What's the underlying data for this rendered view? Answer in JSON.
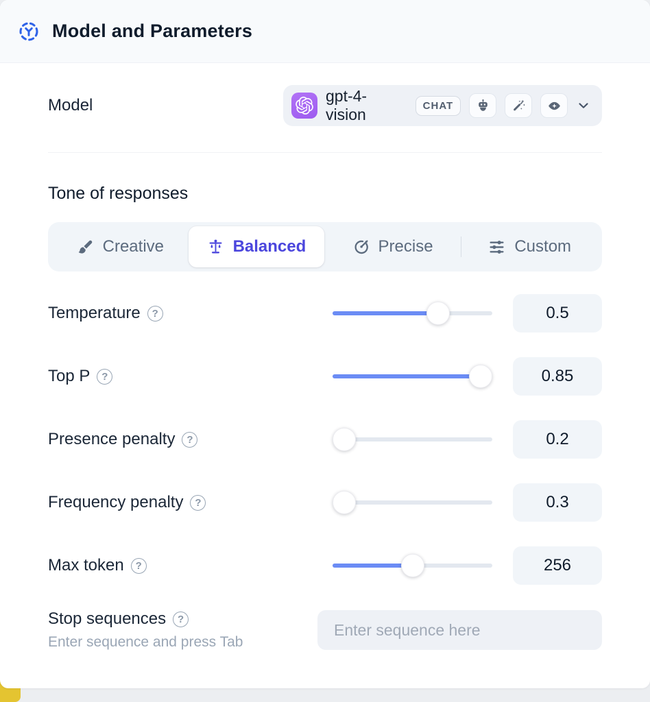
{
  "header": {
    "title": "Model and Parameters"
  },
  "model_row": {
    "label": "Model",
    "selected_model": "gpt-4-vision",
    "type_badge": "CHAT",
    "capability_icons": [
      "robot-icon",
      "magic-wand-icon",
      "vision-eye-icon"
    ]
  },
  "tone": {
    "title": "Tone of responses",
    "tabs": [
      {
        "label": "Creative",
        "icon": "brush-icon",
        "active": false
      },
      {
        "label": "Balanced",
        "icon": "balance-scale-icon",
        "active": true
      },
      {
        "label": "Precise",
        "icon": "target-arrow-icon",
        "active": false
      },
      {
        "label": "Custom",
        "icon": "sliders-icon",
        "active": false
      }
    ]
  },
  "parameters": [
    {
      "label": "Temperature",
      "value": "0.5",
      "fill_percent": 66
    },
    {
      "label": "Top P",
      "value": "0.85",
      "fill_percent": 98
    },
    {
      "label": "Presence penalty",
      "value": "0.2",
      "fill_percent": 0
    },
    {
      "label": "Frequency penalty",
      "value": "0.3",
      "fill_percent": 0
    },
    {
      "label": "Max token",
      "value": "256",
      "fill_percent": 50
    }
  ],
  "stop_sequences": {
    "label": "Stop sequences",
    "helper": "Enter sequence and press Tab",
    "placeholder": "Enter sequence here"
  },
  "help_glyph": "?",
  "colors": {
    "accent_blue": "#6b8cf5",
    "accent_indigo": "#4b46dd",
    "brand_purple": "#a564f1",
    "accent_yellow": "#e4c431",
    "header_icon_blue": "#2f63e8"
  }
}
